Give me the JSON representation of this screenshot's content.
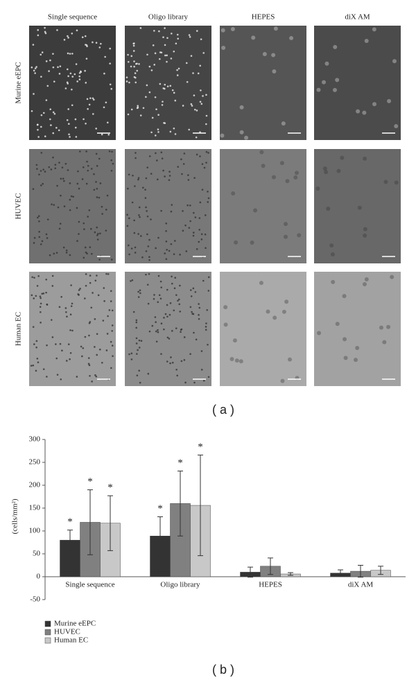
{
  "panel_a": {
    "columns": [
      "Single sequence",
      "Oligo library",
      "HEPES",
      "diX AM"
    ],
    "rows": [
      "Murine eEPC",
      "HUVEC",
      "Human EC"
    ],
    "label": "( a )"
  },
  "panel_b": {
    "label": "( b )"
  },
  "chart_data": {
    "type": "bar",
    "y_label": "(cells/mm²)",
    "categories": [
      "Single sequence",
      "Oligo library",
      "HEPES",
      "diX AM"
    ],
    "series": [
      {
        "name": "Murine eEPC",
        "color": "#333333",
        "values": [
          80,
          89,
          10,
          8
        ],
        "errors": [
          22,
          42,
          11,
          7
        ],
        "markers": [
          "*",
          "*",
          null,
          null
        ]
      },
      {
        "name": "HUVEC",
        "color": "#808080",
        "values": [
          119,
          160,
          23,
          12
        ],
        "errors": [
          71,
          71,
          18,
          13
        ],
        "markers": [
          "*",
          "*",
          null,
          null
        ]
      },
      {
        "name": "Human EC",
        "color": "#c8c8c8",
        "values": [
          117,
          156,
          6,
          14
        ],
        "errors": [
          60,
          110,
          3,
          9
        ],
        "markers": [
          "*",
          "*",
          null,
          null
        ]
      }
    ],
    "ylim": [
      -50,
      300
    ],
    "yticks": [
      -50,
      0,
      50,
      100,
      150,
      200,
      250,
      300
    ],
    "legend": "bottom-left"
  }
}
